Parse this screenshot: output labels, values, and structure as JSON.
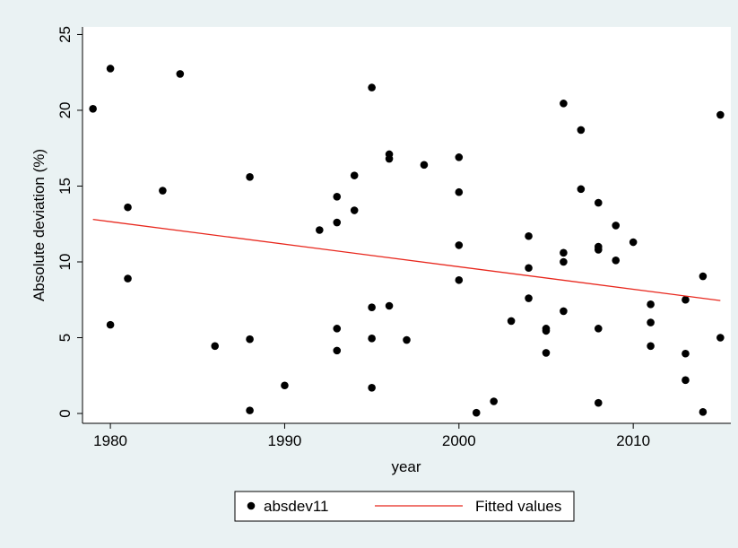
{
  "chart_data": {
    "type": "scatter",
    "xlabel": "year",
    "ylabel": "Absolute deviation (%)",
    "xlim": [
      1978.4,
      2015.6
    ],
    "ylim": [
      -0.65,
      25.5
    ],
    "xticks": [
      1980,
      1990,
      2000,
      2010
    ],
    "yticks": [
      0,
      5,
      10,
      15,
      20,
      25
    ],
    "grid": false,
    "legend": "bottom",
    "series": [
      {
        "name": "absdev11",
        "type": "scatter",
        "color": "#000000",
        "x": [
          1979,
          1980,
          1980,
          1981,
          1981,
          1983,
          1984,
          1986,
          1988,
          1988,
          1988,
          1990,
          1992,
          1993,
          1993,
          1993,
          1993,
          1994,
          1994,
          1995,
          1995,
          1995,
          1995,
          1996,
          1996,
          1996,
          1997,
          1998,
          2000,
          2000,
          2000,
          2000,
          2001,
          2002,
          2003,
          2004,
          2004,
          2004,
          2005,
          2005,
          2005,
          2006,
          2006,
          2006,
          2006,
          2007,
          2007,
          2008,
          2008,
          2008,
          2008,
          2008,
          2009,
          2009,
          2010,
          2011,
          2011,
          2011,
          2013,
          2013,
          2013,
          2014,
          2014,
          2015,
          2015
        ],
        "values": [
          20.1,
          22.75,
          5.85,
          13.6,
          8.9,
          14.7,
          22.4,
          4.45,
          15.6,
          4.9,
          0.2,
          1.85,
          12.1,
          14.3,
          12.6,
          5.6,
          4.15,
          15.7,
          13.4,
          21.5,
          7.0,
          4.95,
          1.7,
          17.1,
          16.8,
          7.1,
          4.85,
          16.4,
          16.9,
          14.6,
          11.1,
          8.8,
          0.05,
          0.8,
          6.1,
          11.7,
          9.6,
          7.6,
          5.6,
          5.45,
          4.0,
          20.45,
          10.6,
          10.0,
          6.75,
          18.7,
          14.8,
          13.9,
          11.0,
          10.8,
          5.6,
          0.7,
          12.4,
          10.1,
          11.3,
          7.2,
          6.0,
          4.45,
          7.5,
          3.95,
          2.2,
          9.05,
          0.1,
          19.7,
          5.0
        ]
      },
      {
        "name": "Fitted values",
        "type": "line",
        "color": "#e8281e",
        "x": [
          1979,
          2015
        ],
        "values": [
          12.8,
          7.45
        ]
      }
    ]
  }
}
